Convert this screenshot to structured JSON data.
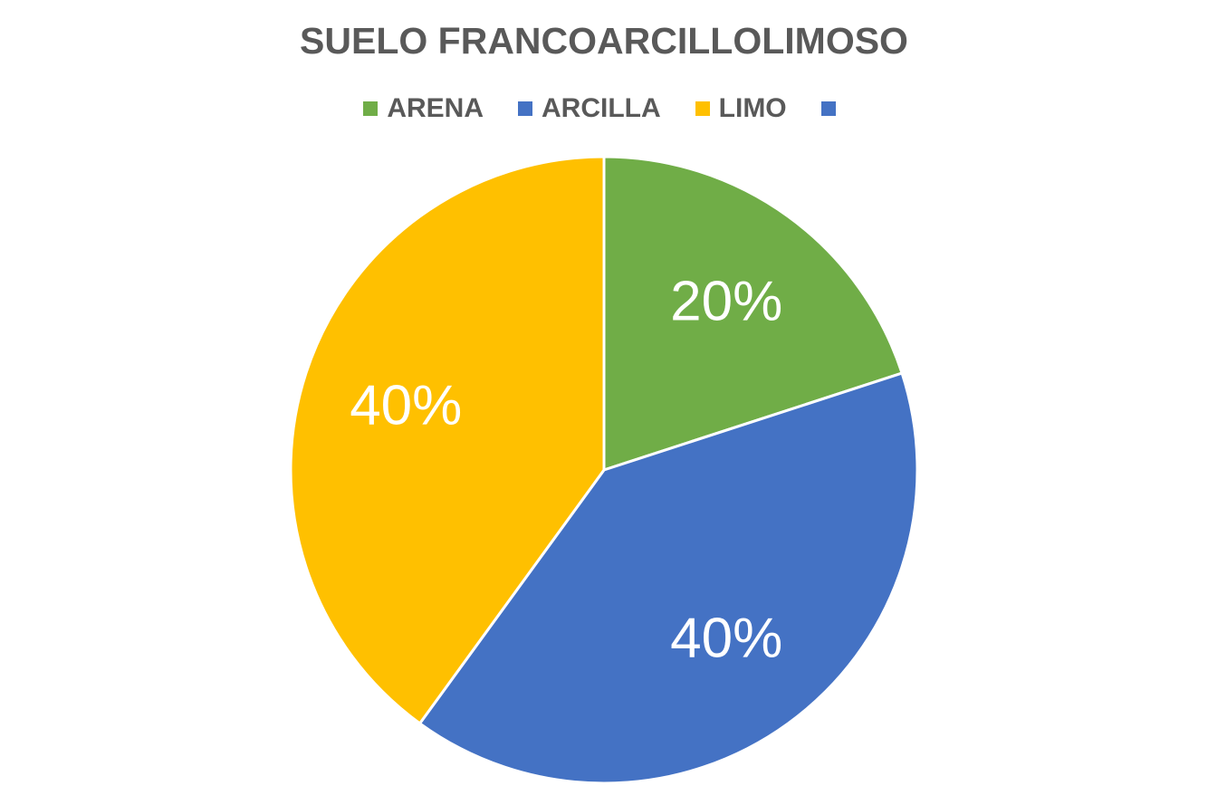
{
  "chart_data": {
    "type": "pie",
    "title": "SUELO FRANCOARCILLOLIMOSO",
    "categories": [
      "ARENA",
      "ARCILLA",
      "LIMO",
      ""
    ],
    "values": [
      20,
      40,
      40,
      0
    ],
    "data_labels": [
      "20%",
      "40%",
      "40%",
      ""
    ],
    "colors": [
      "#70AD47",
      "#4472C4",
      "#FFC000",
      "#4472C4"
    ],
    "legend_position": "top",
    "start_angle_deg": 0,
    "direction": "clockwise"
  }
}
